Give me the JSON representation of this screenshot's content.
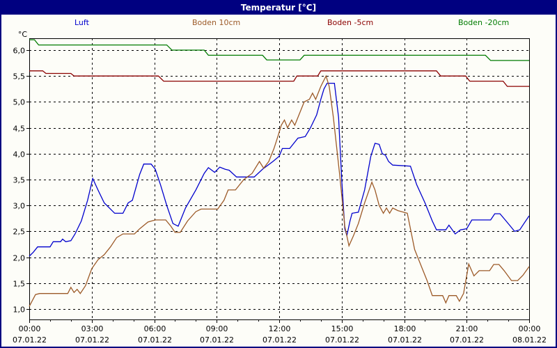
{
  "window": {
    "title": "Temperatur [°C]"
  },
  "axes": {
    "y_unit": "°C"
  },
  "legend": {
    "items": [
      {
        "label": "Luft",
        "color": "#0000CD"
      },
      {
        "label": "Boden 10cm",
        "color": "#9C5A28"
      },
      {
        "label": "Boden -5cm",
        "color": "#8B0000"
      },
      {
        "label": "Boden -20cm",
        "color": "#007B00"
      }
    ]
  },
  "chart_data": {
    "type": "line",
    "title": "Temperatur [°C]",
    "ylabel": "°C",
    "ylim": [
      0.8,
      6.25
    ],
    "xlim_hours": [
      0,
      24
    ],
    "grid": "dashed",
    "legend_position": "top",
    "y_ticks": [
      {
        "value": 6.0,
        "label": "6,0"
      },
      {
        "value": 5.5,
        "label": "5,5"
      },
      {
        "value": 5.0,
        "label": "5,0"
      },
      {
        "value": 4.5,
        "label": "4,5"
      },
      {
        "value": 4.0,
        "label": "4,0"
      },
      {
        "value": 3.5,
        "label": "3,5"
      },
      {
        "value": 3.0,
        "label": "3,0"
      },
      {
        "value": 2.5,
        "label": "2,5"
      },
      {
        "value": 2.0,
        "label": "2,0"
      },
      {
        "value": 1.5,
        "label": "1,5"
      },
      {
        "value": 1.0,
        "label": "1,0"
      }
    ],
    "x_ticks": [
      {
        "hour": 0,
        "time": "00:00",
        "date": "07.01.22"
      },
      {
        "hour": 3,
        "time": "03:00",
        "date": "07.01.22"
      },
      {
        "hour": 6,
        "time": "06:00",
        "date": "07.01.22"
      },
      {
        "hour": 9,
        "time": "09:00",
        "date": "07.01.22"
      },
      {
        "hour": 12,
        "time": "12:00",
        "date": "07.01.22"
      },
      {
        "hour": 15,
        "time": "15:00",
        "date": "07.01.22"
      },
      {
        "hour": 18,
        "time": "18:00",
        "date": "07.01.22"
      },
      {
        "hour": 21,
        "time": "21:00",
        "date": "07.01.22"
      },
      {
        "hour": 24,
        "time": "00:00",
        "date": "08.01.22"
      }
    ],
    "x_minor_tick_every_hours": 1,
    "series": [
      {
        "name": "Luft",
        "color": "#0000CD",
        "points": [
          [
            0,
            2.02
          ],
          [
            0.2,
            2.1
          ],
          [
            0.4,
            2.2
          ],
          [
            1.0,
            2.2
          ],
          [
            1.15,
            2.3
          ],
          [
            1.5,
            2.3
          ],
          [
            1.6,
            2.35
          ],
          [
            1.75,
            2.3
          ],
          [
            2.0,
            2.32
          ],
          [
            2.2,
            2.45
          ],
          [
            2.5,
            2.7
          ],
          [
            2.8,
            3.1
          ],
          [
            3.05,
            3.52
          ],
          [
            3.3,
            3.3
          ],
          [
            3.6,
            3.05
          ],
          [
            4.1,
            2.85
          ],
          [
            4.5,
            2.85
          ],
          [
            4.75,
            3.05
          ],
          [
            4.95,
            3.1
          ],
          [
            5.3,
            3.6
          ],
          [
            5.5,
            3.8
          ],
          [
            5.85,
            3.8
          ],
          [
            6.05,
            3.7
          ],
          [
            6.3,
            3.4
          ],
          [
            6.6,
            3.0
          ],
          [
            6.9,
            2.65
          ],
          [
            7.15,
            2.6
          ],
          [
            7.5,
            2.95
          ],
          [
            8.0,
            3.3
          ],
          [
            8.4,
            3.62
          ],
          [
            8.6,
            3.73
          ],
          [
            8.9,
            3.64
          ],
          [
            9.15,
            3.74
          ],
          [
            9.4,
            3.7
          ],
          [
            9.6,
            3.68
          ],
          [
            9.95,
            3.55
          ],
          [
            10.8,
            3.55
          ],
          [
            11.2,
            3.7
          ],
          [
            11.7,
            3.85
          ],
          [
            12.0,
            3.95
          ],
          [
            12.15,
            4.1
          ],
          [
            12.5,
            4.1
          ],
          [
            12.9,
            4.3
          ],
          [
            13.25,
            4.33
          ],
          [
            13.5,
            4.5
          ],
          [
            13.8,
            4.75
          ],
          [
            14.0,
            5.05
          ],
          [
            14.15,
            5.25
          ],
          [
            14.3,
            5.36
          ],
          [
            14.65,
            5.36
          ],
          [
            14.85,
            4.7
          ],
          [
            15.0,
            3.5
          ],
          [
            15.15,
            2.55
          ],
          [
            15.25,
            2.42
          ],
          [
            15.4,
            2.7
          ],
          [
            15.5,
            2.85
          ],
          [
            15.8,
            2.87
          ],
          [
            16.1,
            3.3
          ],
          [
            16.4,
            3.95
          ],
          [
            16.6,
            4.2
          ],
          [
            16.8,
            4.18
          ],
          [
            16.95,
            4.0
          ],
          [
            17.1,
            3.97
          ],
          [
            17.25,
            3.85
          ],
          [
            17.45,
            3.78
          ],
          [
            18.3,
            3.76
          ],
          [
            18.6,
            3.4
          ],
          [
            19.0,
            3.05
          ],
          [
            19.35,
            2.7
          ],
          [
            19.55,
            2.53
          ],
          [
            20.0,
            2.53
          ],
          [
            20.15,
            2.62
          ],
          [
            20.45,
            2.45
          ],
          [
            20.7,
            2.53
          ],
          [
            21.0,
            2.55
          ],
          [
            21.25,
            2.72
          ],
          [
            22.15,
            2.72
          ],
          [
            22.35,
            2.84
          ],
          [
            22.6,
            2.84
          ],
          [
            22.85,
            2.72
          ],
          [
            23.1,
            2.6
          ],
          [
            23.3,
            2.5
          ],
          [
            23.55,
            2.53
          ],
          [
            23.75,
            2.65
          ],
          [
            24,
            2.8
          ]
        ]
      },
      {
        "name": "Boden 10cm",
        "color": "#9C5A28",
        "points": [
          [
            0,
            1.05
          ],
          [
            0.3,
            1.28
          ],
          [
            0.5,
            1.3
          ],
          [
            1.85,
            1.3
          ],
          [
            2.0,
            1.42
          ],
          [
            2.15,
            1.32
          ],
          [
            2.3,
            1.38
          ],
          [
            2.45,
            1.3
          ],
          [
            2.7,
            1.45
          ],
          [
            3.0,
            1.78
          ],
          [
            3.3,
            1.95
          ],
          [
            3.6,
            2.05
          ],
          [
            3.9,
            2.2
          ],
          [
            4.2,
            2.38
          ],
          [
            4.5,
            2.45
          ],
          [
            5.05,
            2.45
          ],
          [
            5.3,
            2.55
          ],
          [
            5.7,
            2.68
          ],
          [
            6.05,
            2.72
          ],
          [
            6.55,
            2.72
          ],
          [
            6.8,
            2.6
          ],
          [
            7.0,
            2.48
          ],
          [
            7.25,
            2.48
          ],
          [
            7.6,
            2.7
          ],
          [
            8.0,
            2.88
          ],
          [
            8.25,
            2.93
          ],
          [
            9.05,
            2.93
          ],
          [
            9.35,
            3.1
          ],
          [
            9.55,
            3.3
          ],
          [
            9.9,
            3.3
          ],
          [
            10.3,
            3.5
          ],
          [
            10.7,
            3.62
          ],
          [
            11.05,
            3.85
          ],
          [
            11.25,
            3.72
          ],
          [
            11.5,
            3.85
          ],
          [
            11.75,
            4.1
          ],
          [
            11.95,
            4.35
          ],
          [
            12.1,
            4.55
          ],
          [
            12.25,
            4.65
          ],
          [
            12.4,
            4.5
          ],
          [
            12.6,
            4.65
          ],
          [
            12.75,
            4.55
          ],
          [
            13.0,
            4.8
          ],
          [
            13.2,
            5.0
          ],
          [
            13.45,
            5.05
          ],
          [
            13.6,
            5.17
          ],
          [
            13.75,
            5.05
          ],
          [
            14.0,
            5.3
          ],
          [
            14.1,
            5.38
          ],
          [
            14.25,
            5.5
          ],
          [
            14.4,
            5.3
          ],
          [
            14.6,
            4.7
          ],
          [
            14.9,
            3.6
          ],
          [
            15.15,
            2.6
          ],
          [
            15.35,
            2.22
          ],
          [
            15.55,
            2.4
          ],
          [
            15.8,
            2.65
          ],
          [
            16.1,
            3.05
          ],
          [
            16.45,
            3.45
          ],
          [
            16.6,
            3.3
          ],
          [
            16.8,
            3.0
          ],
          [
            17.0,
            2.85
          ],
          [
            17.15,
            2.95
          ],
          [
            17.3,
            2.85
          ],
          [
            17.45,
            2.95
          ],
          [
            17.7,
            2.9
          ],
          [
            18.15,
            2.85
          ],
          [
            18.5,
            2.15
          ],
          [
            18.85,
            1.8
          ],
          [
            19.1,
            1.55
          ],
          [
            19.35,
            1.26
          ],
          [
            19.85,
            1.26
          ],
          [
            20.0,
            1.12
          ],
          [
            20.15,
            1.26
          ],
          [
            20.5,
            1.26
          ],
          [
            20.65,
            1.15
          ],
          [
            20.85,
            1.3
          ],
          [
            21.1,
            1.87
          ],
          [
            21.35,
            1.64
          ],
          [
            21.6,
            1.74
          ],
          [
            22.1,
            1.74
          ],
          [
            22.3,
            1.86
          ],
          [
            22.55,
            1.86
          ],
          [
            22.8,
            1.74
          ],
          [
            23.15,
            1.55
          ],
          [
            23.45,
            1.55
          ],
          [
            23.7,
            1.65
          ],
          [
            24,
            1.82
          ]
        ]
      },
      {
        "name": "Boden -5cm",
        "color": "#8B0000",
        "points": [
          [
            0,
            5.6
          ],
          [
            0.65,
            5.6
          ],
          [
            0.8,
            5.55
          ],
          [
            2.0,
            5.55
          ],
          [
            2.15,
            5.5
          ],
          [
            6.2,
            5.5
          ],
          [
            6.45,
            5.4
          ],
          [
            12.7,
            5.4
          ],
          [
            12.85,
            5.5
          ],
          [
            13.85,
            5.5
          ],
          [
            14.0,
            5.6
          ],
          [
            19.55,
            5.6
          ],
          [
            19.75,
            5.5
          ],
          [
            20.95,
            5.5
          ],
          [
            21.15,
            5.4
          ],
          [
            22.75,
            5.4
          ],
          [
            22.95,
            5.3
          ],
          [
            24,
            5.3
          ]
        ]
      },
      {
        "name": "Boden -20cm",
        "color": "#007B00",
        "points": [
          [
            0,
            6.2
          ],
          [
            0.25,
            6.2
          ],
          [
            0.45,
            6.1
          ],
          [
            6.6,
            6.1
          ],
          [
            6.85,
            6.0
          ],
          [
            8.4,
            6.0
          ],
          [
            8.6,
            5.9
          ],
          [
            11.2,
            5.9
          ],
          [
            11.4,
            5.81
          ],
          [
            13.0,
            5.81
          ],
          [
            13.2,
            5.9
          ],
          [
            21.9,
            5.9
          ],
          [
            22.15,
            5.8
          ],
          [
            24,
            5.8
          ]
        ]
      }
    ]
  }
}
